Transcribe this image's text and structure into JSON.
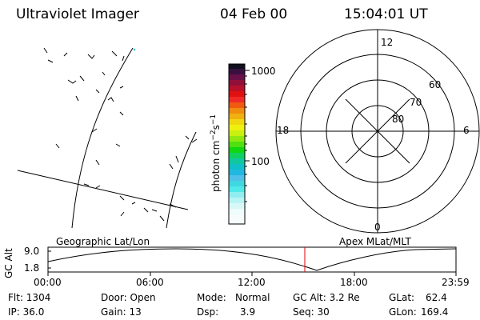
{
  "header": {
    "instrument": "Ultraviolet Imager",
    "date": "04 Feb 00",
    "time": "15:04:01 UT"
  },
  "colorbar": {
    "unit_label": "photon cm",
    "unit_exp1": "−2",
    "unit_mid": "s",
    "unit_exp2": "−1",
    "tick_1000": "1000",
    "tick_100": "100"
  },
  "polar_plot": {
    "mlt_labels": {
      "top": "12",
      "bottom": "0",
      "left": "18",
      "right": "6"
    },
    "lat_labels": [
      "60",
      "70",
      "80"
    ]
  },
  "map_labels": {
    "geographic": "Geographic Lat/Lon",
    "apex": "Apex MLat/MLT"
  },
  "timeline": {
    "ylabel": "GC Alt",
    "ytick_top": "9.0",
    "ytick_bottom": "1.8",
    "xticks": [
      "00:00",
      "06:00",
      "12:00",
      "18:00",
      "23:59"
    ],
    "current_time_color": "#e00000"
  },
  "info": {
    "row1": {
      "flt": "Flt: 1304",
      "door": "Door: Open",
      "mode_label": "Mode:",
      "mode_value": "Normal",
      "gcalt": "GC Alt: 3.2 Re",
      "glat_label": "GLat:",
      "glat_value": "62.4"
    },
    "row2": {
      "ip": "IP: 36.0",
      "gain": "Gain: 13",
      "dsp_label": "Dsp:",
      "dsp_value": "3.9",
      "seq": "Seq: 30",
      "glon_label": "GLon:",
      "glon_value": "169.4"
    }
  }
}
